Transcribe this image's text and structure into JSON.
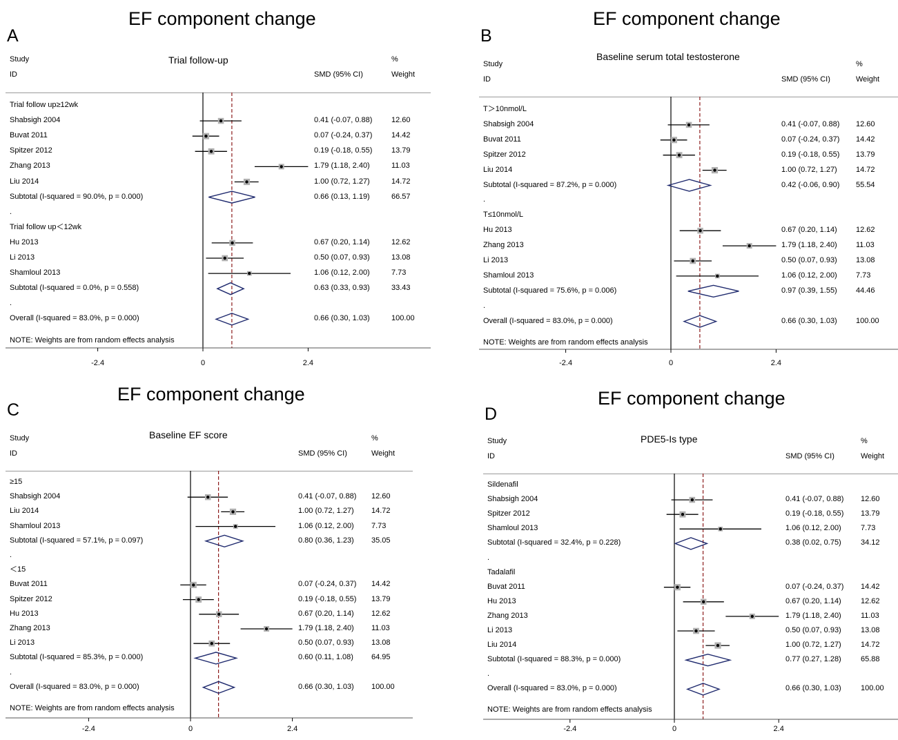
{
  "panels": [
    {
      "letter": "A",
      "title": "EF component change",
      "subtitle": "Trial follow-up",
      "headers": {
        "study": "Study",
        "id": "ID",
        "smd": "SMD (95% CI)",
        "pct": "%",
        "weight": "Weight"
      },
      "note": "NOTE: Weights are from random effects analysis",
      "axis": {
        "min": -4.5,
        "max": 4.5,
        "ticks": [
          "-2.4",
          "0",
          "2.4"
        ],
        "tick_values": [
          -2.4,
          0,
          2.4
        ],
        "overall": 0.66
      },
      "rows": [
        {
          "kind": "group",
          "label": "Trial follow up≥12wk"
        },
        {
          "kind": "study",
          "label": "Shabsigh 2004",
          "est": 0.41,
          "lo": -0.07,
          "hi": 0.88,
          "ci": "0.41 (-0.07, 0.88)",
          "w": "12.60"
        },
        {
          "kind": "study",
          "label": "Buvat 2011",
          "est": 0.07,
          "lo": -0.24,
          "hi": 0.37,
          "ci": "0.07 (-0.24, 0.37)",
          "w": "14.42"
        },
        {
          "kind": "study",
          "label": "Spitzer 2012",
          "est": 0.19,
          "lo": -0.18,
          "hi": 0.55,
          "ci": "0.19 (-0.18, 0.55)",
          "w": "13.79"
        },
        {
          "kind": "study",
          "label": "Zhang 2013",
          "est": 1.79,
          "lo": 1.18,
          "hi": 2.4,
          "ci": "1.79 (1.18, 2.40)",
          "w": "11.03"
        },
        {
          "kind": "study",
          "label": "Liu 2014",
          "est": 1.0,
          "lo": 0.72,
          "hi": 1.27,
          "ci": "1.00 (0.72, 1.27)",
          "w": "14.72"
        },
        {
          "kind": "subtotal",
          "label": "Subtotal  (I-squared = 90.0%, p = 0.000)",
          "est": 0.66,
          "lo": 0.13,
          "hi": 1.19,
          "ci": "0.66 (0.13, 1.19)",
          "w": "66.57"
        },
        {
          "kind": "dot",
          "label": "."
        },
        {
          "kind": "group",
          "label": "Trial follow up＜12wk"
        },
        {
          "kind": "study",
          "label": "Hu 2013",
          "est": 0.67,
          "lo": 0.2,
          "hi": 1.14,
          "ci": "0.67 (0.20, 1.14)",
          "w": "12.62"
        },
        {
          "kind": "study",
          "label": "Li 2013",
          "est": 0.5,
          "lo": 0.07,
          "hi": 0.93,
          "ci": "0.50 (0.07, 0.93)",
          "w": "13.08"
        },
        {
          "kind": "study",
          "label": "Shamloul 2013",
          "est": 1.06,
          "lo": 0.12,
          "hi": 2.0,
          "ci": "1.06 (0.12, 2.00)",
          "w": "7.73"
        },
        {
          "kind": "subtotal",
          "label": "Subtotal  (I-squared = 0.0%, p = 0.558)",
          "est": 0.63,
          "lo": 0.33,
          "hi": 0.93,
          "ci": "0.63 (0.33, 0.93)",
          "w": "33.43"
        },
        {
          "kind": "dot",
          "label": "."
        },
        {
          "kind": "subtotal",
          "label": "Overall  (I-squared = 83.0%, p = 0.000)",
          "est": 0.66,
          "lo": 0.3,
          "hi": 1.03,
          "ci": "0.66 (0.30, 1.03)",
          "w": "100.00"
        }
      ]
    },
    {
      "letter": "B",
      "title": "EF component change",
      "subtitle": "Baseline serum total testosterone",
      "headers": {
        "study": "Study",
        "id": "ID",
        "smd": "SMD (95% CI)",
        "pct": "%",
        "weight": "Weight"
      },
      "note": "NOTE: Weights are from random effects analysis",
      "axis": {
        "min": -4.5,
        "max": 4.5,
        "ticks": [
          "-2.4",
          "0",
          "2.4"
        ],
        "tick_values": [
          -2.4,
          0,
          2.4
        ],
        "overall": 0.66
      },
      "rows": [
        {
          "kind": "group",
          "label": "T＞10nmol/L"
        },
        {
          "kind": "study",
          "label": "Shabsigh 2004",
          "est": 0.41,
          "lo": -0.07,
          "hi": 0.88,
          "ci": "0.41 (-0.07, 0.88)",
          "w": "12.60"
        },
        {
          "kind": "study",
          "label": "Buvat 2011",
          "est": 0.07,
          "lo": -0.24,
          "hi": 0.37,
          "ci": "0.07 (-0.24, 0.37)",
          "w": "14.42"
        },
        {
          "kind": "study",
          "label": "Spitzer 2012",
          "est": 0.19,
          "lo": -0.18,
          "hi": 0.55,
          "ci": "0.19 (-0.18, 0.55)",
          "w": "13.79"
        },
        {
          "kind": "study",
          "label": "Liu 2014",
          "est": 1.0,
          "lo": 0.72,
          "hi": 1.27,
          "ci": "1.00 (0.72, 1.27)",
          "w": "14.72"
        },
        {
          "kind": "subtotal",
          "label": "Subtotal  (I-squared = 87.2%, p = 0.000)",
          "est": 0.42,
          "lo": -0.06,
          "hi": 0.9,
          "ci": "0.42 (-0.06, 0.90)",
          "w": "55.54"
        },
        {
          "kind": "dot",
          "label": "."
        },
        {
          "kind": "group",
          "label": "T≤10nmol/L"
        },
        {
          "kind": "study",
          "label": "Hu 2013",
          "est": 0.67,
          "lo": 0.2,
          "hi": 1.14,
          "ci": "0.67 (0.20, 1.14)",
          "w": "12.62"
        },
        {
          "kind": "study",
          "label": "Zhang 2013",
          "est": 1.79,
          "lo": 1.18,
          "hi": 2.4,
          "ci": "1.79 (1.18, 2.40)",
          "w": "11.03"
        },
        {
          "kind": "study",
          "label": "Li 2013",
          "est": 0.5,
          "lo": 0.07,
          "hi": 0.93,
          "ci": "0.50 (0.07, 0.93)",
          "w": "13.08"
        },
        {
          "kind": "study",
          "label": "Shamloul 2013",
          "est": 1.06,
          "lo": 0.12,
          "hi": 2.0,
          "ci": "1.06 (0.12, 2.00)",
          "w": "7.73"
        },
        {
          "kind": "subtotal",
          "label": "Subtotal  (I-squared = 75.6%, p = 0.006)",
          "est": 0.97,
          "lo": 0.39,
          "hi": 1.55,
          "ci": "0.97 (0.39, 1.55)",
          "w": "44.46"
        },
        {
          "kind": "dot",
          "label": "."
        },
        {
          "kind": "subtotal",
          "label": "Overall  (I-squared = 83.0%, p = 0.000)",
          "est": 0.66,
          "lo": 0.3,
          "hi": 1.03,
          "ci": "0.66 (0.30, 1.03)",
          "w": "100.00"
        }
      ]
    },
    {
      "letter": "C",
      "title": "EF component change",
      "subtitle": "Baseline EF score",
      "headers": {
        "study": "Study",
        "id": "ID",
        "smd": "SMD (95% CI)",
        "pct": "%",
        "weight": "Weight"
      },
      "note": "NOTE: Weights are from random effects analysis",
      "axis": {
        "min": -4.5,
        "max": 4.5,
        "ticks": [
          "-2.4",
          "0",
          "2.4"
        ],
        "tick_values": [
          -2.4,
          0,
          2.4
        ],
        "overall": 0.66
      },
      "rows": [
        {
          "kind": "group",
          "label": "≥15"
        },
        {
          "kind": "study",
          "label": "Shabsigh 2004",
          "est": 0.41,
          "lo": -0.07,
          "hi": 0.88,
          "ci": "0.41 (-0.07, 0.88)",
          "w": "12.60"
        },
        {
          "kind": "study",
          "label": "Liu 2014",
          "est": 1.0,
          "lo": 0.72,
          "hi": 1.27,
          "ci": "1.00 (0.72, 1.27)",
          "w": "14.72"
        },
        {
          "kind": "study",
          "label": "Shamloul 2013",
          "est": 1.06,
          "lo": 0.12,
          "hi": 2.0,
          "ci": "1.06 (0.12, 2.00)",
          "w": "7.73"
        },
        {
          "kind": "subtotal",
          "label": "Subtotal  (I-squared = 57.1%, p = 0.097)",
          "est": 0.8,
          "lo": 0.36,
          "hi": 1.23,
          "ci": "0.80 (0.36, 1.23)",
          "w": "35.05"
        },
        {
          "kind": "dot",
          "label": "."
        },
        {
          "kind": "group",
          "label": "＜15"
        },
        {
          "kind": "study",
          "label": "Buvat 2011",
          "est": 0.07,
          "lo": -0.24,
          "hi": 0.37,
          "ci": "0.07 (-0.24, 0.37)",
          "w": "14.42"
        },
        {
          "kind": "study",
          "label": "Spitzer 2012",
          "est": 0.19,
          "lo": -0.18,
          "hi": 0.55,
          "ci": "0.19 (-0.18, 0.55)",
          "w": "13.79"
        },
        {
          "kind": "study",
          "label": "Hu 2013",
          "est": 0.67,
          "lo": 0.2,
          "hi": 1.14,
          "ci": "0.67 (0.20, 1.14)",
          "w": "12.62"
        },
        {
          "kind": "study",
          "label": "Zhang 2013",
          "est": 1.79,
          "lo": 1.18,
          "hi": 2.4,
          "ci": "1.79 (1.18, 2.40)",
          "w": "11.03"
        },
        {
          "kind": "study",
          "label": "Li 2013",
          "est": 0.5,
          "lo": 0.07,
          "hi": 0.93,
          "ci": "0.50 (0.07, 0.93)",
          "w": "13.08"
        },
        {
          "kind": "subtotal",
          "label": "Subtotal  (I-squared = 85.3%, p = 0.000)",
          "est": 0.6,
          "lo": 0.11,
          "hi": 1.08,
          "ci": "0.60 (0.11, 1.08)",
          "w": "64.95"
        },
        {
          "kind": "dot",
          "label": "."
        },
        {
          "kind": "subtotal",
          "label": "Overall  (I-squared = 83.0%, p = 0.000)",
          "est": 0.66,
          "lo": 0.3,
          "hi": 1.03,
          "ci": "0.66 (0.30, 1.03)",
          "w": "100.00"
        }
      ]
    },
    {
      "letter": "D",
      "title": "EF component change",
      "subtitle": "PDE5-Is type",
      "headers": {
        "study": "Study",
        "id": "ID",
        "smd": "SMD (95% CI)",
        "pct": "%",
        "weight": "Weight"
      },
      "note": "NOTE: Weights are from random effects analysis",
      "axis": {
        "min": -4.5,
        "max": 4.5,
        "ticks": [
          "-2.4",
          "0",
          "2.4"
        ],
        "tick_values": [
          -2.4,
          0,
          2.4
        ],
        "overall": 0.66
      },
      "rows": [
        {
          "kind": "group",
          "label": "Sildenafil"
        },
        {
          "kind": "study",
          "label": "Shabsigh 2004",
          "est": 0.41,
          "lo": -0.07,
          "hi": 0.88,
          "ci": "0.41 (-0.07, 0.88)",
          "w": "12.60"
        },
        {
          "kind": "study",
          "label": "Spitzer 2012",
          "est": 0.19,
          "lo": -0.18,
          "hi": 0.55,
          "ci": "0.19 (-0.18, 0.55)",
          "w": "13.79"
        },
        {
          "kind": "study",
          "label": "Shamloul 2013",
          "est": 1.06,
          "lo": 0.12,
          "hi": 2.0,
          "ci": "1.06 (0.12, 2.00)",
          "w": "7.73"
        },
        {
          "kind": "subtotal",
          "label": "Subtotal  (I-squared = 32.4%, p = 0.228)",
          "est": 0.38,
          "lo": 0.02,
          "hi": 0.75,
          "ci": "0.38 (0.02, 0.75)",
          "w": "34.12"
        },
        {
          "kind": "dot",
          "label": "."
        },
        {
          "kind": "group",
          "label": "Tadalafil"
        },
        {
          "kind": "study",
          "label": "Buvat 2011",
          "est": 0.07,
          "lo": -0.24,
          "hi": 0.37,
          "ci": "0.07 (-0.24, 0.37)",
          "w": "14.42"
        },
        {
          "kind": "study",
          "label": "Hu 2013",
          "est": 0.67,
          "lo": 0.2,
          "hi": 1.14,
          "ci": "0.67 (0.20, 1.14)",
          "w": "12.62"
        },
        {
          "kind": "study",
          "label": "Zhang 2013",
          "est": 1.79,
          "lo": 1.18,
          "hi": 2.4,
          "ci": "1.79 (1.18, 2.40)",
          "w": "11.03"
        },
        {
          "kind": "study",
          "label": "Li 2013",
          "est": 0.5,
          "lo": 0.07,
          "hi": 0.93,
          "ci": "0.50 (0.07, 0.93)",
          "w": "13.08"
        },
        {
          "kind": "study",
          "label": "Liu 2014",
          "est": 1.0,
          "lo": 0.72,
          "hi": 1.27,
          "ci": "1.00 (0.72, 1.27)",
          "w": "14.72"
        },
        {
          "kind": "subtotal",
          "label": "Subtotal  (I-squared = 88.3%, p = 0.000)",
          "est": 0.77,
          "lo": 0.27,
          "hi": 1.28,
          "ci": "0.77 (0.27, 1.28)",
          "w": "65.88"
        },
        {
          "kind": "dot",
          "label": "."
        },
        {
          "kind": "subtotal",
          "label": "Overall  (I-squared = 83.0%, p = 0.000)",
          "est": 0.66,
          "lo": 0.3,
          "hi": 1.03,
          "ci": "0.66 (0.30, 1.03)",
          "w": "100.00"
        }
      ]
    }
  ],
  "colors": {
    "diamond": "#1f2a6e",
    "reference_line": "#8b1a1a",
    "box": "#b0b0b0",
    "ci_line": "#000000"
  },
  "chart_data": [
    {
      "type": "forest",
      "title": "EF component change",
      "subtitle": "Trial follow-up",
      "xlim": [
        -4.5,
        4.5
      ],
      "xticks": [
        -2.4,
        0,
        2.4
      ],
      "overall_line": 0.66
    },
    {
      "type": "forest",
      "title": "EF component change",
      "subtitle": "Baseline serum total testosterone",
      "xlim": [
        -4.5,
        4.5
      ],
      "xticks": [
        -2.4,
        0,
        2.4
      ],
      "overall_line": 0.66
    },
    {
      "type": "forest",
      "title": "EF component change",
      "subtitle": "Baseline EF score",
      "xlim": [
        -4.5,
        4.5
      ],
      "xticks": [
        -2.4,
        0,
        2.4
      ],
      "overall_line": 0.66
    },
    {
      "type": "forest",
      "title": "EF component change",
      "subtitle": "PDE5-Is type",
      "xlim": [
        -4.5,
        4.5
      ],
      "xticks": [
        -2.4,
        0,
        2.4
      ],
      "overall_line": 0.66
    }
  ]
}
